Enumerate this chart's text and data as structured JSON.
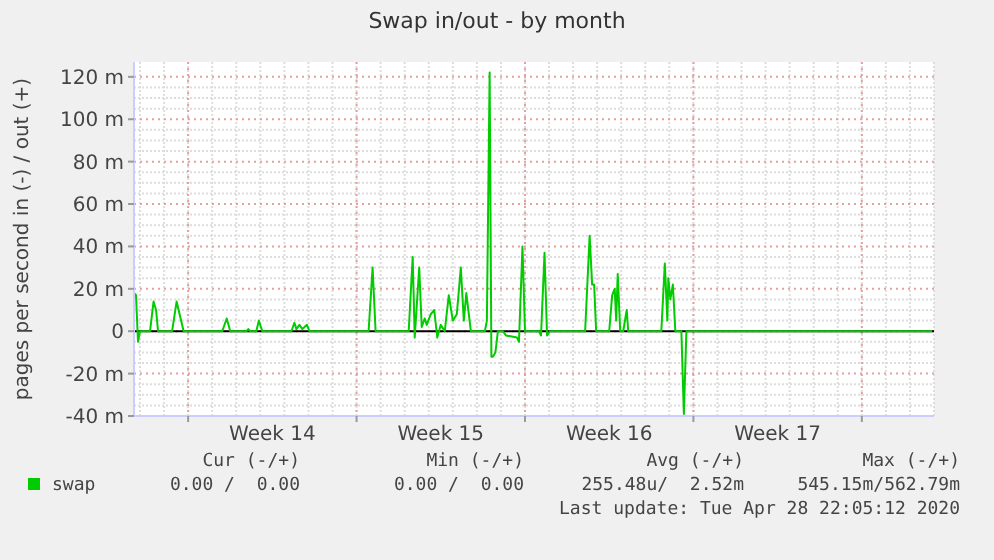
{
  "chart_data": {
    "type": "line",
    "title": "Swap in/out - by month",
    "ylabel": "pages per second in (-) / out (+)",
    "xlim": [
      "2020-03-26T18:00",
      "2020-04-29T00:00"
    ],
    "xticks": [
      {
        "value": "2020-03-29T00:00",
        "label": null
      },
      {
        "value": "2020-04-01T12:00",
        "label": "Week 14"
      },
      {
        "value": "2020-04-05T00:00",
        "label": null
      },
      {
        "value": "2020-04-08T12:00",
        "label": "Week 15"
      },
      {
        "value": "2020-04-12T00:00",
        "label": null
      },
      {
        "value": "2020-04-15T12:00",
        "label": "Week 16"
      },
      {
        "value": "2020-04-19T00:00",
        "label": null
      },
      {
        "value": "2020-04-22T12:00",
        "label": "Week 17"
      },
      {
        "value": "2020-04-26T00:00",
        "label": null
      }
    ],
    "ylim": [
      -40,
      127
    ],
    "yticks": [
      {
        "value": -40,
        "label": "-40 m"
      },
      {
        "value": -20,
        "label": "-20 m"
      },
      {
        "value": 0,
        "label": "0"
      },
      {
        "value": 20,
        "label": "20 m"
      },
      {
        "value": 40,
        "label": "40 m"
      },
      {
        "value": 60,
        "label": "60 m"
      },
      {
        "value": 80,
        "label": "80 m"
      },
      {
        "value": 100,
        "label": "100 m"
      },
      {
        "value": 120,
        "label": "120 m"
      }
    ],
    "grid": true,
    "legend": "bottom",
    "ref_lines": [
      {
        "axis": "y",
        "value": 0,
        "color": "#000000"
      }
    ],
    "series": [
      {
        "name": "swap",
        "color": "#00cc00",
        "x": [
          "2020-03-26T18:00",
          "2020-03-26T20:00",
          "2020-03-26T22:00",
          "2020-03-27T00:00",
          "2020-03-27T10:00",
          "2020-03-27T13:30",
          "2020-03-27T16:00",
          "2020-03-27T18:00",
          "2020-03-28T08:00",
          "2020-03-28T12:30",
          "2020-03-28T19:30",
          "2020-03-30T10:00",
          "2020-03-30T14:30",
          "2020-03-30T18:00",
          "2020-03-31T10:00",
          "2020-03-31T12:00",
          "2020-03-31T14:00",
          "2020-03-31T20:00",
          "2020-03-31T22:30",
          "2020-04-01T02:00",
          "2020-04-02T07:00",
          "2020-04-02T10:00",
          "2020-04-02T12:00",
          "2020-04-02T15:00",
          "2020-04-02T18:00",
          "2020-04-02T22:30",
          "2020-04-03T01:00",
          "2020-04-05T12:00",
          "2020-04-05T16:00",
          "2020-04-05T19:00",
          "2020-04-07T04:00",
          "2020-04-07T08:00",
          "2020-04-07T10:00",
          "2020-04-07T14:30",
          "2020-04-07T17:00",
          "2020-04-07T20:00",
          "2020-04-07T22:00",
          "2020-04-08T02:00",
          "2020-04-08T05:30",
          "2020-04-08T08:30",
          "2020-04-08T12:00",
          "2020-04-08T16:00",
          "2020-04-08T20:00",
          "2020-04-09T00:00",
          "2020-04-09T04:00",
          "2020-04-09T08:00",
          "2020-04-09T11:00",
          "2020-04-09T13:30",
          "2020-04-09T18:00",
          "2020-04-10T08:00",
          "2020-04-10T10:00",
          "2020-04-10T12:45",
          "2020-04-10T14:30",
          "2020-04-10T16:00",
          "2020-04-10T18:30",
          "2020-04-10T21:00",
          "2020-04-11T02:00",
          "2020-04-11T05:00",
          "2020-04-11T16:00",
          "2020-04-11T18:00",
          "2020-04-11T21:30",
          "2020-04-12T00:00",
          "2020-04-12T14:00",
          "2020-04-12T16:00",
          "2020-04-12T19:30",
          "2020-04-12T22:00",
          "2020-04-13T01:00",
          "2020-04-14T12:00",
          "2020-04-14T16:30",
          "2020-04-14T19:00",
          "2020-04-14T21:00",
          "2020-04-14T23:00",
          "2020-04-15T12:00",
          "2020-04-15T15:00",
          "2020-04-15T17:30",
          "2020-04-15T19:00",
          "2020-04-15T20:30",
          "2020-04-15T23:00",
          "2020-04-16T02:00",
          "2020-04-16T05:30",
          "2020-04-16T07:00",
          "2020-04-17T16:00",
          "2020-04-17T19:30",
          "2020-04-17T22:00",
          "2020-04-17T23:00",
          "2020-04-18T01:00",
          "2020-04-18T03:30",
          "2020-04-18T06:00",
          "2020-04-18T12:00",
          "2020-04-18T14:30",
          "2020-04-18T17:00",
          "2020-04-28T22:00"
        ],
        "values": [
          18,
          17,
          -5,
          0,
          0,
          14,
          10,
          0,
          0,
          14,
          0,
          0,
          6,
          0,
          0,
          1,
          0,
          0,
          5,
          0,
          0,
          4,
          1,
          3,
          1,
          3,
          0,
          0,
          30,
          0,
          0,
          35,
          -3,
          30,
          2,
          6,
          3,
          8,
          10,
          -3,
          3,
          0,
          17,
          5,
          8,
          30,
          5,
          18,
          0,
          0,
          5,
          122,
          -12,
          -12,
          -10,
          0,
          0,
          -2,
          -3,
          -5,
          40,
          0,
          0,
          -2,
          37,
          -2,
          0,
          0,
          45,
          22,
          22,
          0,
          0,
          17,
          20,
          5,
          27,
          0,
          0,
          10,
          0,
          0,
          32,
          5,
          25,
          15,
          22,
          0,
          0,
          -39,
          0,
          0
        ]
      }
    ],
    "annotations": [
      "Cur (-/+)",
      "Min (-/+)",
      "Avg (-/+)",
      "Max (-/+)",
      "0.00 /  0.00",
      "0.00 /  0.00",
      "255.48u/  2.52m",
      "545.15m/562.79m",
      "Last update: Tue Apr 28 22:05:12 2020"
    ]
  }
}
